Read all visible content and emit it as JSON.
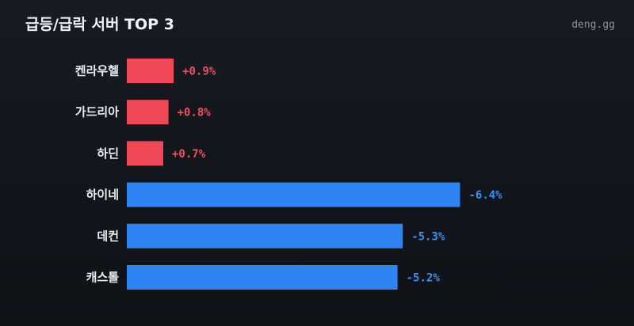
{
  "header": {
    "title": "급등/급락 서버 TOP 3",
    "brand": "deng.gg"
  },
  "colors": {
    "up": "#f04856",
    "down": "#2f84f4",
    "up_text": "#ef4f5c",
    "down_text": "#3d8ef4"
  },
  "chart_data": {
    "type": "bar",
    "orientation": "horizontal",
    "categories": [
      "켄라우헬",
      "가드리아",
      "하딘",
      "하이네",
      "데컨",
      "캐스톨"
    ],
    "values": [
      0.9,
      0.8,
      0.7,
      -6.4,
      -5.3,
      -5.2
    ],
    "value_labels": [
      "+0.9%",
      "+0.8%",
      "+0.7%",
      "-6.4%",
      "-5.3%",
      "-5.2%"
    ],
    "unit": "%",
    "grid": false,
    "legend": "none"
  }
}
